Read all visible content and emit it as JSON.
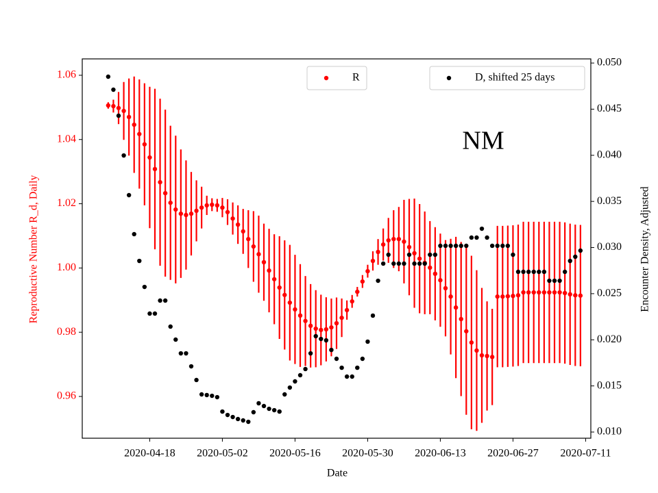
{
  "chart_data": {
    "type": "scatter",
    "xlabel": "Date",
    "ylabel": "Reproductive Number R_d, Daily",
    "y2label": "Encounter Density, Adjusted",
    "annotation": "NM",
    "x": [
      "2020-04-10",
      "2020-04-11",
      "2020-04-12",
      "2020-04-13",
      "2020-04-14",
      "2020-04-15",
      "2020-04-16",
      "2020-04-17",
      "2020-04-18",
      "2020-04-19",
      "2020-04-20",
      "2020-04-21",
      "2020-04-22",
      "2020-04-23",
      "2020-04-24",
      "2020-04-25",
      "2020-04-26",
      "2020-04-27",
      "2020-04-28",
      "2020-04-29",
      "2020-04-30",
      "2020-05-01",
      "2020-05-02",
      "2020-05-03",
      "2020-05-04",
      "2020-05-05",
      "2020-05-06",
      "2020-05-07",
      "2020-05-08",
      "2020-05-09",
      "2020-05-10",
      "2020-05-11",
      "2020-05-12",
      "2020-05-13",
      "2020-05-14",
      "2020-05-15",
      "2020-05-16",
      "2020-05-17",
      "2020-05-18",
      "2020-05-19",
      "2020-05-20",
      "2020-05-21",
      "2020-05-22",
      "2020-05-23",
      "2020-05-24",
      "2020-05-25",
      "2020-05-26",
      "2020-05-27",
      "2020-05-28",
      "2020-05-29",
      "2020-05-30",
      "2020-05-31",
      "2020-06-01",
      "2020-06-02",
      "2020-06-03",
      "2020-06-04",
      "2020-06-05",
      "2020-06-06",
      "2020-06-07",
      "2020-06-08",
      "2020-06-09",
      "2020-06-10",
      "2020-06-11",
      "2020-06-12",
      "2020-06-13",
      "2020-06-14",
      "2020-06-15",
      "2020-06-16",
      "2020-06-17",
      "2020-06-18",
      "2020-06-19",
      "2020-06-20",
      "2020-06-21",
      "2020-06-22",
      "2020-06-23",
      "2020-06-24",
      "2020-06-25",
      "2020-06-26",
      "2020-06-27",
      "2020-06-28",
      "2020-06-29",
      "2020-06-30",
      "2020-07-01",
      "2020-07-02",
      "2020-07-03",
      "2020-07-04",
      "2020-07-05",
      "2020-07-06",
      "2020-07-07",
      "2020-07-08",
      "2020-07-09",
      "2020-07-10"
    ],
    "series": [
      {
        "name": "R",
        "color": "#ff0000",
        "axis": "y",
        "values": [
          1.0506,
          1.0504,
          1.0498,
          1.0489,
          1.047,
          1.0446,
          1.0417,
          1.0385,
          1.0344,
          1.0308,
          1.0267,
          1.0233,
          1.0203,
          1.0182,
          1.0169,
          1.0165,
          1.0169,
          1.0178,
          1.0188,
          1.0195,
          1.0197,
          1.0195,
          1.0188,
          1.0174,
          1.0154,
          1.0135,
          1.0114,
          1.009,
          1.0067,
          1.0043,
          1.0018,
          0.9992,
          0.9965,
          0.9939,
          0.9916,
          0.9892,
          0.9871,
          0.9852,
          0.9835,
          0.982,
          0.9811,
          0.9807,
          0.9809,
          0.9815,
          0.9828,
          0.9845,
          0.9869,
          0.9896,
          0.9926,
          0.9958,
          0.999,
          1.0022,
          1.005,
          1.0073,
          1.0086,
          1.009,
          1.009,
          1.0082,
          1.0065,
          1.0046,
          1.0029,
          1.0016,
          1.0001,
          0.9982,
          0.9962,
          0.9937,
          0.9911,
          0.9877,
          0.9841,
          0.9803,
          0.9768,
          0.9743,
          0.9728,
          0.9726,
          0.9723,
          0.9911,
          0.9911,
          0.9912,
          0.9913,
          0.9915,
          0.9924,
          0.9924,
          0.9924,
          0.9924,
          0.9924,
          0.9924,
          0.9924,
          0.9924,
          0.9922,
          0.9918,
          0.9915,
          0.9914
        ],
        "errors": [
          0.001,
          0.002,
          0.005,
          0.009,
          0.012,
          0.015,
          0.017,
          0.019,
          0.022,
          0.025,
          0.026,
          0.026,
          0.024,
          0.023,
          0.02,
          0.017,
          0.013,
          0.0095,
          0.0065,
          0.003,
          0.002,
          0.002,
          0.003,
          0.004,
          0.005,
          0.006,
          0.007,
          0.009,
          0.011,
          0.012,
          0.012,
          0.013,
          0.014,
          0.016,
          0.017,
          0.018,
          0.017,
          0.016,
          0.014,
          0.013,
          0.012,
          0.011,
          0.01,
          0.009,
          0.008,
          0.006,
          0.003,
          0.002,
          0.0015,
          0.002,
          0.002,
          0.003,
          0.004,
          0.005,
          0.007,
          0.009,
          0.01,
          0.013,
          0.015,
          0.017,
          0.017,
          0.016,
          0.0145,
          0.0145,
          0.0145,
          0.015,
          0.018,
          0.022,
          0.024,
          0.026,
          0.027,
          0.025,
          0.021,
          0.017,
          0.015,
          0.022,
          0.022,
          0.022,
          0.022,
          0.022,
          0.022,
          0.022,
          0.022,
          0.022,
          0.022,
          0.022,
          0.022,
          0.022,
          0.022,
          0.022,
          0.022,
          0.022
        ]
      },
      {
        "name": "D, shifted 25 days",
        "color": "#000000",
        "axis": "y2",
        "values": [
          0.04852,
          0.04711,
          0.04429,
          0.03998,
          0.03568,
          0.03145,
          0.02855,
          0.02573,
          0.02284,
          0.02284,
          0.02425,
          0.02425,
          0.02143,
          0.02002,
          0.01853,
          0.01853,
          0.01712,
          0.01564,
          0.01408,
          0.01401,
          0.01393,
          0.01378,
          0.01222,
          0.01185,
          0.01163,
          0.01141,
          0.01126,
          0.01111,
          0.01215,
          0.01312,
          0.01282,
          0.01252,
          0.01237,
          0.01222,
          0.01408,
          0.01482,
          0.01549,
          0.01616,
          0.01683,
          0.01853,
          0.02039,
          0.02009,
          0.01994,
          0.0189,
          0.01794,
          0.01697,
          0.01601,
          0.01601,
          0.01697,
          0.01794,
          0.0198,
          0.02262,
          0.0264,
          0.02826,
          0.02922,
          0.02826,
          0.02826,
          0.02826,
          0.02922,
          0.02826,
          0.02826,
          0.02826,
          0.02922,
          0.02922,
          0.03019,
          0.03019,
          0.03019,
          0.03019,
          0.03019,
          0.03019,
          0.03108,
          0.03108,
          0.03204,
          0.03108,
          0.03019,
          0.03019,
          0.03019,
          0.03019,
          0.02922,
          0.02737,
          0.02737,
          0.02737,
          0.02737,
          0.02737,
          0.02737,
          0.0264,
          0.0264,
          0.0264,
          0.02737,
          0.02855,
          0.029,
          0.02967
        ]
      }
    ],
    "xlim": [
      "2020-04-05",
      "2020-07-12"
    ],
    "xticks": [
      "2020-04-18",
      "2020-05-02",
      "2020-05-16",
      "2020-05-30",
      "2020-06-13",
      "2020-06-27",
      "2020-07-11"
    ],
    "ylim": [
      0.947,
      1.0651
    ],
    "yticks": [
      0.96,
      0.98,
      {
        "value": 1.0,
        "label": "1.00"
      },
      1.02,
      1.04,
      1.06
    ],
    "y2lim": [
      0.00933,
      0.05045
    ],
    "y2ticks": [
      {
        "value": 0.01,
        "label": "0.010"
      },
      0.015,
      {
        "value": 0.02,
        "label": "0.020"
      },
      0.025,
      {
        "value": 0.03,
        "label": "0.030"
      },
      0.035,
      {
        "value": 0.04,
        "label": "0.040"
      },
      0.045,
      {
        "value": 0.05,
        "label": "0.050"
      }
    ],
    "ylabel_color": "#ff0000"
  }
}
